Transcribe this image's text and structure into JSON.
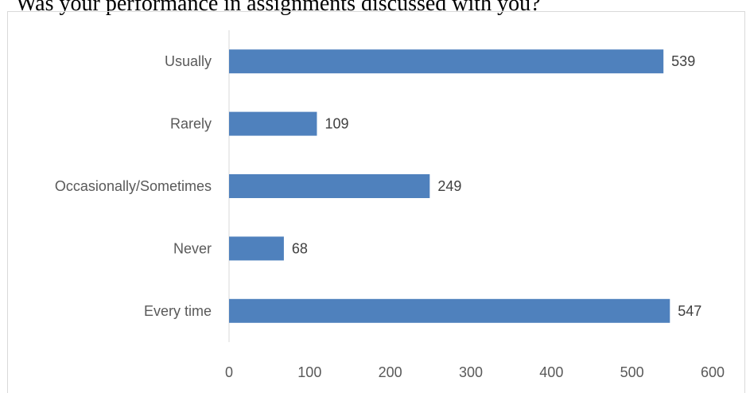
{
  "chart_data": {
    "type": "bar",
    "orientation": "horizontal",
    "title": "Was your performance in assignments discussed with you?",
    "categories": [
      "Usually",
      "Rarely",
      "Occasionally/Sometimes",
      "Never",
      "Every time"
    ],
    "values": [
      539,
      109,
      249,
      68,
      547
    ],
    "xlim": [
      0,
      600
    ],
    "xticks": [
      0,
      100,
      200,
      300,
      400,
      500,
      600
    ],
    "grid": false,
    "legend": "none",
    "bar_color": "#4f81bd"
  }
}
